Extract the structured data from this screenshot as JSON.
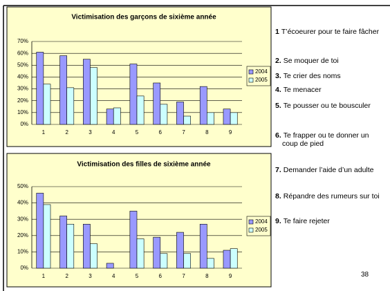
{
  "chart_data": [
    {
      "type": "bar",
      "title": "Victimisation des garçons de sixième année",
      "categories": [
        "1",
        "2",
        "3",
        "4",
        "5",
        "6",
        "7",
        "8",
        "9"
      ],
      "series": [
        {
          "name": "2004",
          "color": "#9999ff",
          "values": [
            61,
            58,
            55,
            13,
            51,
            35,
            19,
            32,
            13
          ]
        },
        {
          "name": "2005",
          "color": "#ccffff",
          "values": [
            34,
            31,
            48,
            14,
            24,
            17,
            7,
            10,
            10
          ]
        }
      ],
      "ylim": [
        0,
        70
      ],
      "yticks": [
        {
          "value": 0,
          "label": "0%"
        },
        {
          "value": 10,
          "label": "10%"
        },
        {
          "value": 20,
          "label": "20%"
        },
        {
          "value": 30,
          "label": "30%"
        },
        {
          "value": 40,
          "label": "40%"
        },
        {
          "value": 50,
          "label": "50%"
        },
        {
          "value": 60,
          "label": "60%"
        },
        {
          "value": 70,
          "label": "70%"
        }
      ],
      "grid": true,
      "legend": "right"
    },
    {
      "type": "bar",
      "title": "Victimisation des filles de sixième année",
      "categories": [
        "1",
        "2",
        "3",
        "4",
        "5",
        "6",
        "7",
        "8",
        "9"
      ],
      "series": [
        {
          "name": "2004",
          "color": "#9999ff",
          "values": [
            46,
            32,
            27,
            3,
            35,
            19,
            22,
            27,
            11
          ]
        },
        {
          "name": "2005",
          "color": "#ccffff",
          "values": [
            39,
            27,
            15,
            0,
            18,
            9,
            9,
            6,
            12
          ]
        }
      ],
      "ylim": [
        0,
        50
      ],
      "yticks": [
        {
          "value": 0,
          "label": "0%"
        },
        {
          "value": 10,
          "label": "10%"
        },
        {
          "value": 20,
          "label": "20%"
        },
        {
          "value": 30,
          "label": "30%"
        },
        {
          "value": 40,
          "label": "40%"
        },
        {
          "value": 50,
          "label": "50%"
        }
      ],
      "grid": true,
      "legend": "right"
    }
  ],
  "items": [
    {
      "number": "1",
      "text": "T’écoeurer pour te faire fâcher"
    },
    {
      "number": "2.",
      "text": "Se moquer de toi"
    },
    {
      "number": "3.",
      "text": "Te crier des noms"
    },
    {
      "number": "4.",
      "text": "Te menacer"
    },
    {
      "number": "5.",
      "text": "Te pousser ou te bousculer"
    },
    {
      "number": "6.",
      "text": "Te frapper ou te donner un coup de pied"
    },
    {
      "number": "7.",
      "text": "Demander l’aide d’un adulte"
    },
    {
      "number": "8.",
      "text": "Répandre des rumeurs sur toi"
    },
    {
      "number": "9.",
      "text": "Te faire rejeter"
    }
  ],
  "page_number": "38"
}
